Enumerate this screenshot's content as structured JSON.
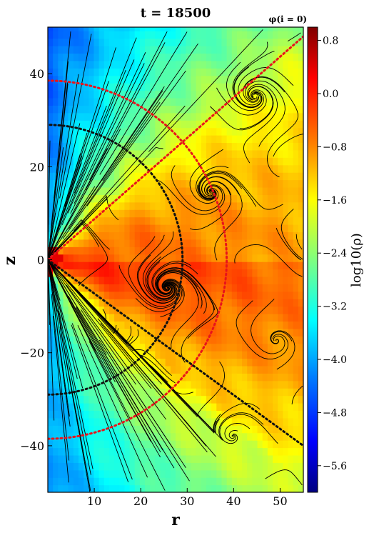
{
  "chart_data": {
    "type": "heatmap",
    "title": "t = 18500",
    "corner_label": "φ(i = 0)",
    "xlabel": "r",
    "ylabel": "z",
    "xlim": [
      0,
      55
    ],
    "ylim": [
      -50,
      50
    ],
    "x_ticks": [
      10,
      20,
      30,
      40,
      50
    ],
    "y_ticks": [
      -40,
      -20,
      0,
      20,
      40
    ],
    "colorbar": {
      "label": "log10(ρ)",
      "range": [
        -6.0,
        1.0
      ],
      "ticks": [
        "0.8",
        "0.0",
        "−0.8",
        "−1.6",
        "−2.4",
        "−3.2",
        "−4.0",
        "−4.8",
        "−5.6"
      ],
      "tick_values": [
        0.8,
        0.0,
        -0.8,
        -1.6,
        -2.4,
        -3.2,
        -4.0,
        -4.8,
        -5.6
      ],
      "colormap": "jet"
    },
    "overlays": {
      "red_dotted_circle_radius": 38.5,
      "red_dotted_line_endpoint": [
        55,
        48
      ],
      "black_dotted_line_endpoint": [
        55,
        -40
      ],
      "black_dotted_arc_radius": 29
    },
    "grid": false,
    "streamlines": true
  }
}
